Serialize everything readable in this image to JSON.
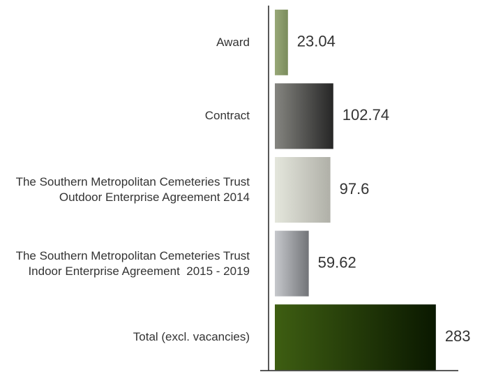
{
  "chart_data": {
    "type": "barh",
    "categories": [
      "Award",
      "Contract",
      "The Southern Metropolitan Cemeteries Trust Outdoor Enterprise Agreement 2014",
      "The Southern Metropolitan Cemeteries Trust Indoor Enterprise Agreement  2015 - 2019",
      "Total (excl. vacancies)"
    ],
    "values": [
      23.04,
      102.74,
      97.6,
      59.62,
      283
    ],
    "colors": [
      [
        "#98a878",
        "#7a8c5c"
      ],
      [
        "#858580",
        "#262626"
      ],
      [
        "#e4e6dc",
        "#b0b0a8"
      ],
      [
        "#c6c8cc",
        "#727478"
      ],
      [
        "#3e5e12",
        "#0a1800"
      ]
    ],
    "xlim": [
      0,
      320
    ]
  }
}
